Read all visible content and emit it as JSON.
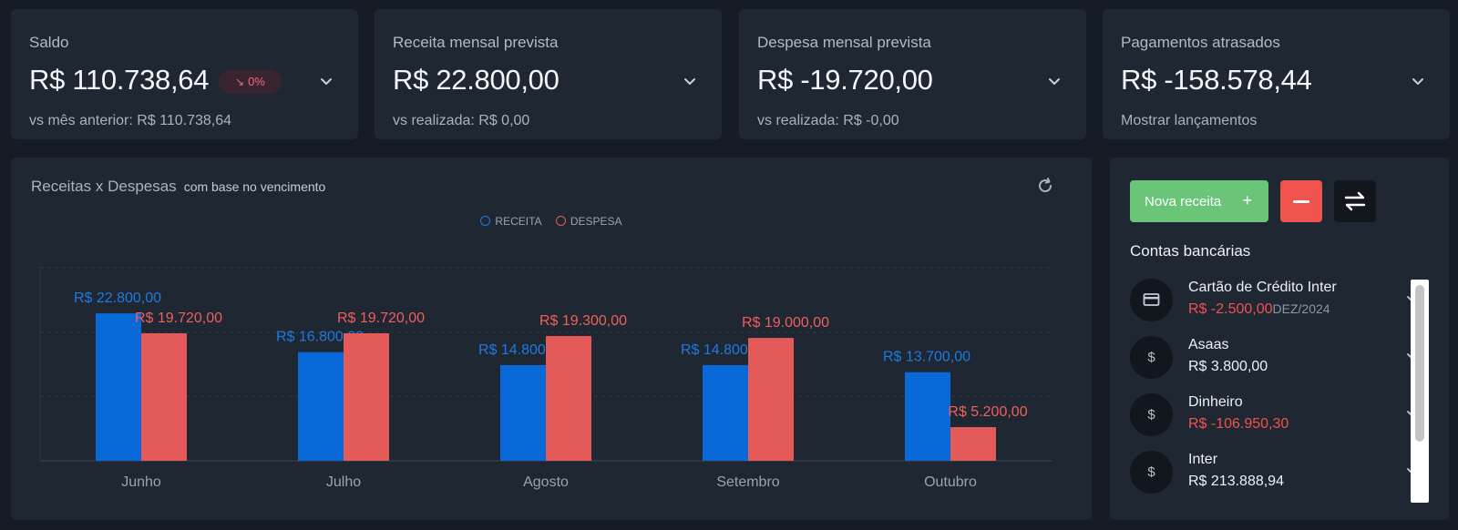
{
  "kpis": [
    {
      "label": "Saldo",
      "value": "R$ 110.738,64",
      "badge": "0%",
      "sub": "vs mês anterior: R$ 110.738,64"
    },
    {
      "label": "Receita mensal prevista",
      "value": "R$ 22.800,00",
      "sub": "vs realizada: R$ 0,00"
    },
    {
      "label": "Despesa mensal prevista",
      "value": "R$ -19.720,00",
      "sub": "vs realizada: R$ -0,00"
    },
    {
      "label": "Pagamentos atrasados",
      "value": "R$ -158.578,44",
      "sub": "Mostrar lançamentos"
    }
  ],
  "chart": {
    "title": "Receitas x Despesas",
    "subtitle": "com base no vencimento",
    "legend": [
      "RECEITA",
      "DESPESA"
    ]
  },
  "chart_data": {
    "type": "bar",
    "categories": [
      "Junho",
      "Julho",
      "Agosto",
      "Setembro",
      "Outubro"
    ],
    "series": [
      {
        "name": "RECEITA",
        "values": [
          22800,
          16800,
          14800,
          14800,
          13700
        ],
        "labels": [
          "R$ 22.800,00",
          "R$ 16.800,00",
          "R$ 14.800,00",
          "R$ 14.800,00",
          "R$ 13.700,00"
        ],
        "color": "#0a69d8"
      },
      {
        "name": "DESPESA",
        "values": [
          19720,
          19720,
          19300,
          19000,
          5200
        ],
        "labels": [
          "R$ 19.720,00",
          "R$ 19.720,00",
          "R$ 19.300,00",
          "R$ 19.000,00",
          "R$ 5.200,00"
        ],
        "color": "#e45a58"
      }
    ],
    "ylim": [
      0,
      30000
    ],
    "grid": true,
    "legend_position": "top-center"
  },
  "actions": {
    "nova_receita": "Nova receita",
    "plus": "+"
  },
  "accounts_section": {
    "title": "Contas bancárias",
    "items": [
      {
        "icon": "card-icon",
        "name": "Cartão de Crédito Inter",
        "balance": "R$ -2.500,00",
        "negative": true,
        "due": "DEZ/2024"
      },
      {
        "icon": "dollar-icon",
        "symbol": "$",
        "name": "Asaas",
        "balance": "R$ 3.800,00",
        "negative": false,
        "due": ""
      },
      {
        "icon": "dollar-icon",
        "symbol": "$",
        "name": "Dinheiro",
        "balance": "R$ -106.950,30",
        "negative": true,
        "due": ""
      },
      {
        "icon": "dollar-icon",
        "symbol": "$",
        "name": "Inter",
        "balance": "R$ 213.888,94",
        "negative": false,
        "due": ""
      }
    ]
  },
  "colors": {
    "receita": "#0a69d8",
    "despesa": "#e45a58",
    "success": "#6bc579",
    "danger": "#f0524d"
  }
}
